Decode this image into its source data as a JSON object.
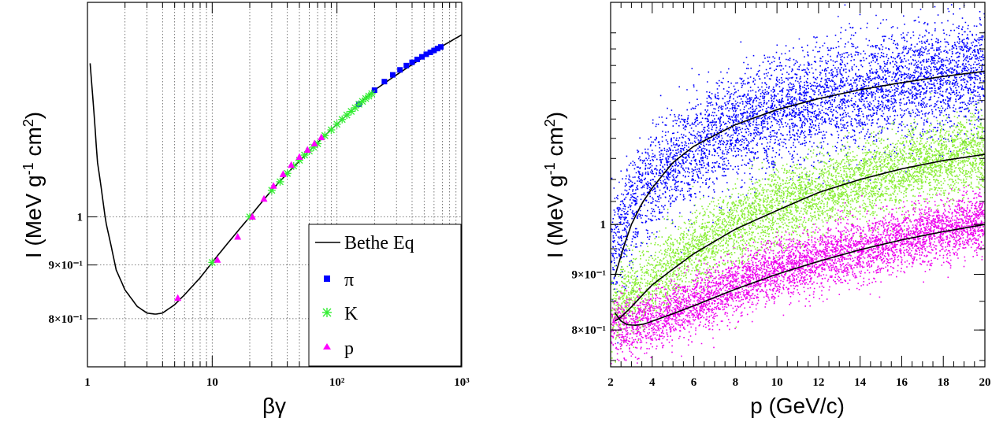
{
  "chart_data": [
    {
      "type": "line",
      "title": "",
      "xlabel": "βγ",
      "ylabel": "I (MeV g-1 cm2)",
      "xscale": "log",
      "yscale": "log",
      "xlim": [
        1,
        1000
      ],
      "ylim": [
        0.72,
        1.6
      ],
      "grid": true,
      "legend_position": "bottom-right",
      "x_tick_labels": [
        "1",
        "10",
        "10²",
        "10³"
      ],
      "y_tick_labels": [
        "8×10⁻¹",
        "9×10⁻¹",
        "1"
      ],
      "legend": [
        {
          "label": "Bethe Eq",
          "marker": "line",
          "color": "#000000"
        },
        {
          "label": "π",
          "marker": "square",
          "color": "#0000ff"
        },
        {
          "label": "K",
          "marker": "asterisk",
          "color": "#33ee33"
        },
        {
          "label": "p",
          "marker": "triangle",
          "color": "#ff00ff"
        }
      ],
      "series": [
        {
          "name": "Bethe Eq",
          "kind": "curve",
          "color": "#000000",
          "x": [
            1.05,
            1.2,
            1.4,
            1.7,
            2.0,
            2.5,
            3.0,
            3.5,
            4.0,
            5.0,
            6.0,
            8.0,
            10,
            15,
            20,
            30,
            40,
            60,
            80,
            100,
            150,
            200,
            300,
            500,
            1000
          ],
          "y": [
            1.4,
            1.13,
            0.99,
            0.89,
            0.852,
            0.822,
            0.81,
            0.808,
            0.81,
            0.825,
            0.843,
            0.875,
            0.905,
            0.96,
            1.0,
            1.06,
            1.1,
            1.155,
            1.195,
            1.225,
            1.28,
            1.32,
            1.365,
            1.42,
            1.49
          ]
        },
        {
          "name": "π",
          "kind": "square",
          "color": "#0000ff",
          "x": [
            150,
            200,
            240,
            280,
            320,
            360,
            400,
            440,
            480,
            520,
            560,
            600,
            640,
            680
          ],
          "y": [
            1.28,
            1.32,
            1.345,
            1.365,
            1.38,
            1.393,
            1.403,
            1.412,
            1.42,
            1.428,
            1.434,
            1.44,
            1.446,
            1.451
          ]
        },
        {
          "name": "K",
          "kind": "asterisk",
          "color": "#33ee33",
          "x": [
            10,
            20,
            30,
            35,
            40,
            45,
            50,
            55,
            60,
            65,
            70,
            80,
            90,
            100,
            110,
            120,
            130,
            140,
            150,
            160,
            170,
            180,
            190
          ],
          "y": [
            0.905,
            1.0,
            1.06,
            1.08,
            1.1,
            1.118,
            1.132,
            1.145,
            1.155,
            1.165,
            1.174,
            1.195,
            1.21,
            1.225,
            1.238,
            1.25,
            1.26,
            1.27,
            1.28,
            1.288,
            1.296,
            1.303,
            1.31
          ]
        },
        {
          "name": "p",
          "kind": "triangle",
          "color": "#ff00ff",
          "x": [
            5.3,
            11,
            16,
            21,
            26,
            31,
            37,
            43,
            50,
            58,
            66,
            75
          ],
          "y": [
            0.837,
            0.91,
            0.957,
            1.0,
            1.04,
            1.07,
            1.098,
            1.12,
            1.14,
            1.158,
            1.174,
            1.19
          ]
        }
      ]
    },
    {
      "type": "scatter",
      "title": "",
      "xlabel": "p (GeV/c)",
      "ylabel": "I (MeV g-1 cm2)",
      "yscale": "log",
      "xlim": [
        2,
        20
      ],
      "ylim": [
        0.74,
        1.6
      ],
      "grid": false,
      "x_tick_labels": [
        "2",
        "4",
        "6",
        "8",
        "10",
        "12",
        "14",
        "16",
        "18",
        "20"
      ],
      "y_tick_labels": [
        "8×10⁻¹",
        "9×10⁻¹",
        "1"
      ],
      "series": [
        {
          "name": "π",
          "color": "#0000ff",
          "band": {
            "p": [
              2,
              3,
              4,
              6,
              8,
              10,
              12,
              14,
              16,
              18,
              20
            ],
            "centre": [
              0.95,
              1.04,
              1.1,
              1.18,
              1.23,
              1.27,
              1.3,
              1.33,
              1.35,
              1.37,
              1.39
            ],
            "half_width": 0.13
          }
        },
        {
          "name": "K",
          "color": "#88ee33",
          "band": {
            "p": [
              2,
              3,
              4,
              6,
              8,
              10,
              12,
              14,
              16,
              18,
              20
            ],
            "centre": [
              0.83,
              0.86,
              0.89,
              0.95,
              1.0,
              1.04,
              1.07,
              1.1,
              1.13,
              1.15,
              1.17
            ],
            "half_width": 0.09
          }
        },
        {
          "name": "p",
          "color": "#ee00ee",
          "band": {
            "p": [
              2,
              3,
              4,
              6,
              8,
              10,
              12,
              14,
              16,
              18,
              20
            ],
            "centre": [
              0.81,
              0.81,
              0.82,
              0.85,
              0.88,
              0.91,
              0.93,
              0.95,
              0.97,
              0.99,
              1.01
            ],
            "half_width": 0.07
          }
        }
      ],
      "curves": [
        {
          "name": "π",
          "color": "#000000",
          "x": [
            2.2,
            2.6,
            3,
            3.5,
            4,
            5,
            6,
            8,
            10,
            12,
            14,
            16,
            18,
            20
          ],
          "y": [
            0.895,
            0.95,
            1.0,
            1.045,
            1.08,
            1.14,
            1.18,
            1.235,
            1.275,
            1.305,
            1.33,
            1.35,
            1.368,
            1.383
          ]
        },
        {
          "name": "K",
          "color": "#000000",
          "x": [
            2.2,
            2.5,
            3,
            3.5,
            4,
            5,
            6,
            8,
            10,
            12,
            14,
            16,
            18,
            20
          ],
          "y": [
            0.815,
            0.822,
            0.84,
            0.86,
            0.88,
            0.91,
            0.94,
            0.99,
            1.03,
            1.07,
            1.1,
            1.125,
            1.145,
            1.16
          ]
        },
        {
          "name": "p",
          "color": "#000000",
          "x": [
            2.2,
            2.5,
            2.8,
            3.2,
            3.6,
            4,
            5,
            6,
            8,
            10,
            12,
            14,
            16,
            18,
            20
          ],
          "y": [
            0.83,
            0.815,
            0.809,
            0.808,
            0.81,
            0.815,
            0.828,
            0.842,
            0.872,
            0.9,
            0.925,
            0.948,
            0.968,
            0.985,
            1.0
          ]
        }
      ]
    }
  ]
}
